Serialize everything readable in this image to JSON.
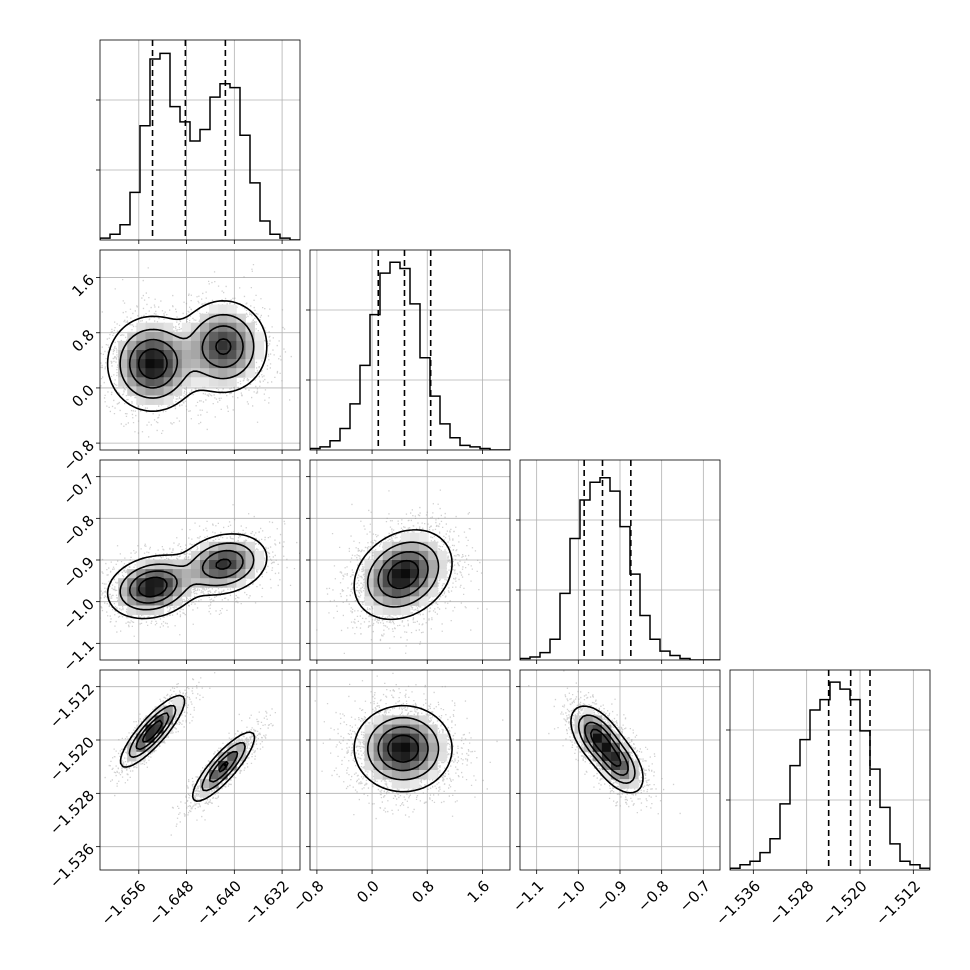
{
  "chart_data": {
    "type": "corner",
    "variables": [
      {
        "range": [
          -1.6625,
          -1.629
        ],
        "ticks": [
          -1.656,
          -1.648,
          -1.64,
          -1.632
        ],
        "tick_labels": [
          "−1.656",
          "−1.648",
          "−1.640",
          "−1.632"
        ]
      },
      {
        "range": [
          -0.9,
          2.0
        ],
        "ticks": [
          -0.8,
          0.0,
          0.8,
          1.6
        ],
        "tick_labels": [
          "−0.8",
          "0.0",
          "0.8",
          "1.6"
        ]
      },
      {
        "range": [
          -1.14,
          -0.66
        ],
        "ticks": [
          -1.1,
          -1.0,
          -0.9,
          -0.8,
          -0.7
        ],
        "tick_labels": [
          "−1.1",
          "−1.0",
          "−0.9",
          "−0.8",
          "−0.7"
        ]
      },
      {
        "range": [
          -1.5395,
          -1.5095
        ],
        "ticks": [
          -1.536,
          -1.528,
          -1.52,
          -1.512
        ],
        "tick_labels": [
          "−1.536",
          "−1.528",
          "−1.520",
          "−1.512"
        ]
      }
    ],
    "histograms": [
      {
        "counts": [
          1,
          3,
          8,
          25,
          60,
          95,
          98,
          70,
          62,
          52,
          58,
          75,
          82,
          80,
          55,
          30,
          10,
          3,
          1,
          0
        ],
        "quantiles": [
          -1.6537,
          -1.6482,
          -1.6415
        ],
        "ylim": [
          0,
          105
        ]
      },
      {
        "counts": [
          1,
          2,
          6,
          14,
          30,
          55,
          88,
          115,
          122,
          118,
          95,
          60,
          35,
          17,
          8,
          3,
          2,
          1,
          0,
          0
        ],
        "quantiles": [
          0.09,
          0.47,
          0.85
        ],
        "ylim": [
          0,
          130
        ]
      },
      {
        "counts": [
          1,
          2,
          5,
          14,
          45,
          82,
          108,
          120,
          123,
          114,
          90,
          58,
          30,
          14,
          6,
          3,
          1,
          0,
          0,
          0
        ],
        "quantiles": [
          -0.986,
          -0.942,
          -0.874
        ],
        "ylim": [
          0,
          135
        ]
      },
      {
        "counts": [
          1,
          3,
          5,
          10,
          18,
          38,
          60,
          75,
          92,
          98,
          108,
          104,
          98,
          80,
          58,
          36,
          15,
          5,
          3,
          1
        ],
        "quantiles": [
          -1.5247,
          -1.5214,
          -1.5185
        ],
        "ylim": [
          0,
          115
        ]
      }
    ],
    "pairs": [
      {
        "row": 1,
        "col": 0,
        "blobs": [
          {
            "cx": -1.6537,
            "cy": 0.35,
            "sx": 0.0035,
            "sy": 0.32,
            "rho": 0.0,
            "w": 1.0
          },
          {
            "cx": -1.6418,
            "cy": 0.6,
            "sx": 0.0035,
            "sy": 0.32,
            "rho": 0.0,
            "w": 0.85
          }
        ]
      },
      {
        "row": 2,
        "col": 0,
        "blobs": [
          {
            "cx": -1.6537,
            "cy": -0.965,
            "sx": 0.0035,
            "sy": 0.035,
            "rho": 0.2,
            "w": 1.0
          },
          {
            "cx": -1.6418,
            "cy": -0.91,
            "sx": 0.0035,
            "sy": 0.035,
            "rho": 0.2,
            "w": 0.85
          }
        ]
      },
      {
        "row": 2,
        "col": 1,
        "blobs": [
          {
            "cx": 0.45,
            "cy": -0.935,
            "sx": 0.33,
            "sy": 0.05,
            "rho": 0.25,
            "w": 1.0
          }
        ]
      },
      {
        "row": 3,
        "col": 0,
        "blobs": [
          {
            "cx": -1.6537,
            "cy": -1.5187,
            "sx": 0.0025,
            "sy": 0.0025,
            "rho": 0.85,
            "w": 1.0
          },
          {
            "cx": -1.6418,
            "cy": -1.524,
            "sx": 0.0025,
            "sy": 0.0025,
            "rho": 0.85,
            "w": 0.85
          }
        ]
      },
      {
        "row": 3,
        "col": 1,
        "blobs": [
          {
            "cx": 0.45,
            "cy": -1.5213,
            "sx": 0.33,
            "sy": 0.003,
            "rho": 0.0,
            "w": 1.0
          }
        ]
      },
      {
        "row": 3,
        "col": 2,
        "blobs": [
          {
            "cx": -0.955,
            "cy": -1.5195,
            "sx": 0.03,
            "sy": 0.0022,
            "rho": -0.5,
            "w": 1.0
          },
          {
            "cx": -0.905,
            "cy": -1.5235,
            "sx": 0.03,
            "sy": 0.0022,
            "rho": -0.5,
            "w": 0.85
          }
        ]
      }
    ],
    "contour_levels": [
      0.1,
      0.3,
      0.55,
      0.8
    ],
    "grid": true,
    "colors": {
      "points": "#9a9a9a",
      "contour": "#000000",
      "density_dark": "#0a0a0a",
      "quantile_line": "#000000",
      "grid": "#b0b0b0",
      "axis": "#000000"
    }
  }
}
